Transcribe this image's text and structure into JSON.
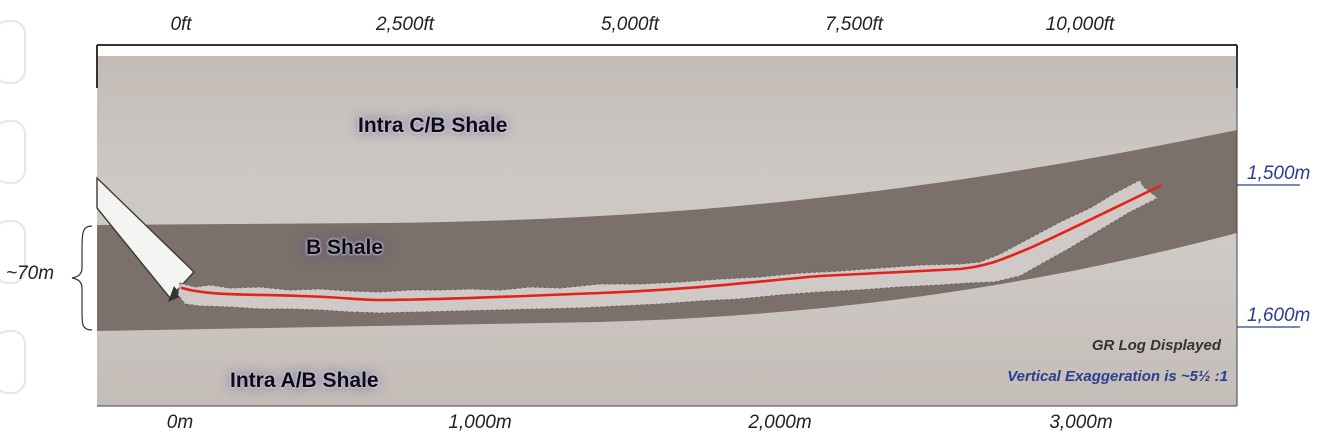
{
  "top_axis": {
    "labels": [
      "0ft",
      "2,500ft",
      "5,000ft",
      "7,500ft",
      "10,000ft"
    ]
  },
  "bottom_axis": {
    "labels": [
      "0m",
      "1,000m",
      "2,000m",
      "3,000m"
    ]
  },
  "depth_axis": {
    "labels": [
      "1,500m",
      "1,600m"
    ]
  },
  "thickness_label": "~70m",
  "units": {
    "upper": "Intra C/B Shale",
    "middle": "B Shale",
    "lower": "Intra A/B Shale"
  },
  "notes": {
    "log": "GR Log Displayed",
    "exaggeration": "Vertical Exaggeration is ~5½ :1"
  },
  "colors": {
    "shale_light": "#cdc7c3",
    "shale_dark": "#7b706a",
    "wellbore_trace": "#e2231a",
    "note_blue": "#2b3d8f",
    "note_dark": "#333333"
  }
}
